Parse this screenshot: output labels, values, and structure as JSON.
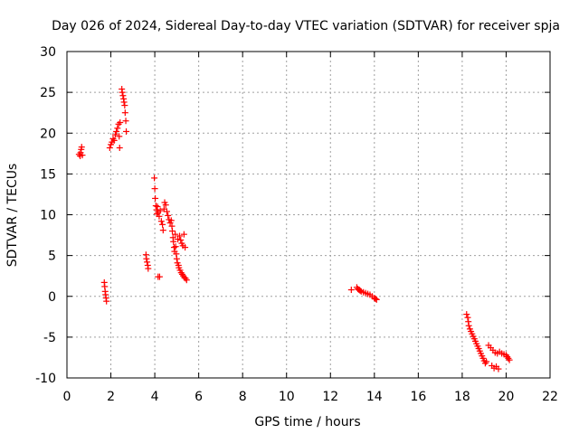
{
  "chart_data": {
    "type": "scatter",
    "title": "Day 026 of 2024, Sidereal Day-to-day VTEC variation (SDTVAR) for receiver spja",
    "xlabel": "GPS time / hours",
    "ylabel": "SDTVAR / TECUs",
    "xlim": [
      0,
      22
    ],
    "ylim": [
      -10,
      30
    ],
    "xticks": [
      "0",
      "2",
      "4",
      "6",
      "8",
      "10",
      "12",
      "14",
      "16",
      "18",
      "20",
      "22"
    ],
    "yticks": [
      "-10",
      "-5",
      "0",
      "5",
      "10",
      "15",
      "20",
      "25",
      "30"
    ],
    "grid": true,
    "marker": "+",
    "series_color": "#ff0000",
    "series": [
      {
        "name": "SDTVAR",
        "points": [
          [
            0.55,
            17.4
          ],
          [
            0.6,
            17.2
          ],
          [
            0.62,
            17.6
          ],
          [
            0.65,
            18.0
          ],
          [
            0.67,
            18.3
          ],
          [
            0.7,
            17.3
          ],
          [
            1.7,
            1.7
          ],
          [
            1.72,
            1.2
          ],
          [
            1.74,
            0.6
          ],
          [
            1.76,
            0.2
          ],
          [
            1.78,
            -0.2
          ],
          [
            1.8,
            -0.6
          ],
          [
            1.95,
            18.2
          ],
          [
            2.0,
            18.6
          ],
          [
            2.05,
            18.9
          ],
          [
            2.1,
            19.3
          ],
          [
            2.15,
            19.1
          ],
          [
            2.2,
            19.8
          ],
          [
            2.25,
            20.2
          ],
          [
            2.3,
            20.6
          ],
          [
            2.35,
            21.1
          ],
          [
            2.38,
            19.6
          ],
          [
            2.4,
            18.2
          ],
          [
            2.42,
            21.3
          ],
          [
            2.5,
            25.4
          ],
          [
            2.52,
            25.0
          ],
          [
            2.55,
            24.6
          ],
          [
            2.58,
            24.2
          ],
          [
            2.6,
            23.8
          ],
          [
            2.63,
            23.4
          ],
          [
            2.65,
            22.5
          ],
          [
            2.68,
            21.5
          ],
          [
            2.7,
            20.2
          ],
          [
            3.6,
            5.1
          ],
          [
            3.62,
            4.6
          ],
          [
            3.65,
            4.2
          ],
          [
            3.68,
            3.8
          ],
          [
            3.7,
            3.4
          ],
          [
            3.98,
            14.5
          ],
          [
            4.0,
            13.2
          ],
          [
            4.02,
            12.0
          ],
          [
            4.05,
            11.1
          ],
          [
            4.08,
            10.6
          ],
          [
            4.1,
            10.1
          ],
          [
            4.12,
            11.0
          ],
          [
            4.15,
            10.3
          ],
          [
            4.15,
            2.4
          ],
          [
            4.2,
            9.8
          ],
          [
            4.22,
            2.4
          ],
          [
            4.25,
            10.5
          ],
          [
            4.3,
            9.2
          ],
          [
            4.35,
            8.8
          ],
          [
            4.38,
            8.1
          ],
          [
            4.42,
            10.7
          ],
          [
            4.45,
            11.5
          ],
          [
            4.5,
            11.2
          ],
          [
            4.55,
            10.4
          ],
          [
            4.6,
            9.9
          ],
          [
            4.65,
            9.4
          ],
          [
            4.7,
            9.0
          ],
          [
            4.75,
            9.3
          ],
          [
            4.78,
            8.6
          ],
          [
            4.8,
            8.0
          ],
          [
            4.83,
            7.2
          ],
          [
            4.85,
            6.7
          ],
          [
            4.88,
            6.0
          ],
          [
            4.9,
            5.5
          ],
          [
            4.93,
            7.6
          ],
          [
            4.95,
            6.1
          ],
          [
            4.98,
            5.2
          ],
          [
            5.0,
            4.6
          ],
          [
            5.03,
            4.1
          ],
          [
            5.05,
            7.0
          ],
          [
            5.08,
            3.8
          ],
          [
            5.1,
            3.5
          ],
          [
            5.13,
            7.4
          ],
          [
            5.15,
            3.2
          ],
          [
            5.18,
            6.9
          ],
          [
            5.2,
            2.9
          ],
          [
            5.23,
            6.5
          ],
          [
            5.25,
            2.7
          ],
          [
            5.28,
            6.2
          ],
          [
            5.3,
            2.5
          ],
          [
            5.33,
            7.6
          ],
          [
            5.35,
            2.3
          ],
          [
            5.38,
            6.0
          ],
          [
            5.4,
            2.2
          ],
          [
            5.45,
            2.0
          ],
          [
            12.95,
            0.8
          ],
          [
            13.2,
            1.1
          ],
          [
            13.25,
            0.9
          ],
          [
            13.3,
            0.8
          ],
          [
            13.35,
            0.7
          ],
          [
            13.4,
            0.6
          ],
          [
            13.5,
            0.5
          ],
          [
            13.6,
            0.4
          ],
          [
            13.7,
            0.3
          ],
          [
            13.8,
            0.2
          ],
          [
            13.9,
            0.0
          ],
          [
            14.0,
            -0.2
          ],
          [
            14.05,
            -0.3
          ],
          [
            14.1,
            -0.4
          ],
          [
            18.2,
            -2.2
          ],
          [
            18.25,
            -2.6
          ],
          [
            18.28,
            -3.1
          ],
          [
            18.3,
            -3.6
          ],
          [
            18.35,
            -4.0
          ],
          [
            18.4,
            -4.3
          ],
          [
            18.45,
            -4.6
          ],
          [
            18.5,
            -4.9
          ],
          [
            18.55,
            -5.2
          ],
          [
            18.6,
            -5.5
          ],
          [
            18.65,
            -5.8
          ],
          [
            18.7,
            -6.1
          ],
          [
            18.75,
            -6.4
          ],
          [
            18.8,
            -6.7
          ],
          [
            18.85,
            -7.0
          ],
          [
            18.9,
            -7.3
          ],
          [
            18.95,
            -7.6
          ],
          [
            19.0,
            -7.9
          ],
          [
            19.05,
            -8.2
          ],
          [
            19.1,
            -8.0
          ],
          [
            19.2,
            -6.0
          ],
          [
            19.3,
            -6.3
          ],
          [
            19.35,
            -8.5
          ],
          [
            19.4,
            -6.6
          ],
          [
            19.45,
            -8.8
          ],
          [
            19.5,
            -6.9
          ],
          [
            19.55,
            -8.6
          ],
          [
            19.6,
            -7.0
          ],
          [
            19.65,
            -8.9
          ],
          [
            19.7,
            -6.8
          ],
          [
            19.8,
            -7.0
          ],
          [
            19.9,
            -7.1
          ],
          [
            20.0,
            -7.2
          ],
          [
            20.05,
            -7.4
          ],
          [
            20.1,
            -7.6
          ],
          [
            20.15,
            -7.8
          ]
        ]
      }
    ]
  }
}
